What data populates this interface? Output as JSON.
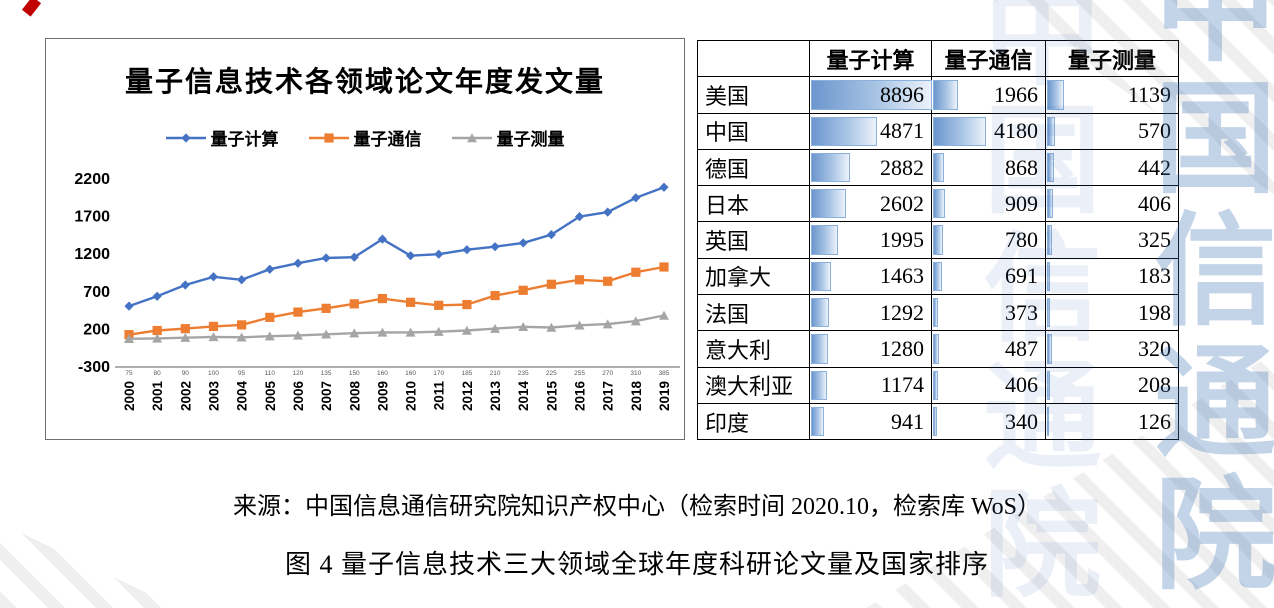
{
  "decor": {
    "watermark_text": "中国信通院",
    "watermark_color": "#3970B7",
    "stripe_color": "#828282",
    "corner_mark_color": "#C00000"
  },
  "chart_data": [
    {
      "type": "line",
      "title": "量子信息技术各领域论文年度发文量",
      "x": [
        "2000",
        "2001",
        "2002",
        "2003",
        "2004",
        "2005",
        "2006",
        "2007",
        "2008",
        "2009",
        "2010",
        "2011",
        "2012",
        "2013",
        "2014",
        "2015",
        "2016",
        "2017",
        "2018",
        "2019"
      ],
      "series": [
        {
          "name": "量子计算",
          "color": "#4472C4",
          "marker": "diamond",
          "values": [
            510,
            640,
            790,
            900,
            860,
            1000,
            1080,
            1150,
            1160,
            1400,
            1180,
            1200,
            1260,
            1300,
            1350,
            1460,
            1700,
            1760,
            1950,
            2090
          ]
        },
        {
          "name": "量子通信",
          "color": "#ED7D31",
          "marker": "square",
          "values": [
            130,
            185,
            210,
            240,
            260,
            360,
            430,
            480,
            540,
            610,
            560,
            520,
            530,
            650,
            720,
            800,
            860,
            840,
            960,
            1030
          ]
        },
        {
          "name": "量子测量",
          "color": "#A5A5A5",
          "marker": "triangle",
          "show_labels": true,
          "values": [
            75,
            80,
            90,
            100,
            95,
            110,
            120,
            135,
            150,
            160,
            160,
            170,
            185,
            210,
            235,
            225,
            255,
            270,
            310,
            385
          ]
        }
      ],
      "ylim": [
        -300,
        2200
      ],
      "yticks": [
        2200,
        1700,
        1200,
        700,
        200,
        -300
      ],
      "grid": false,
      "legend_position": "top"
    },
    {
      "type": "table",
      "headers": [
        "",
        "量子计算",
        "量子通信",
        "量子测量"
      ],
      "bar_max": 8896,
      "rows": [
        {
          "country": "美国",
          "values": [
            8896,
            1966,
            1139
          ]
        },
        {
          "country": "中国",
          "values": [
            4871,
            4180,
            570
          ]
        },
        {
          "country": "德国",
          "values": [
            2882,
            868,
            442
          ]
        },
        {
          "country": "日本",
          "values": [
            2602,
            909,
            406
          ]
        },
        {
          "country": "英国",
          "values": [
            1995,
            780,
            325
          ]
        },
        {
          "country": "加拿大",
          "values": [
            1463,
            691,
            183
          ]
        },
        {
          "country": "法国",
          "values": [
            1292,
            373,
            198
          ]
        },
        {
          "country": "意大利",
          "values": [
            1280,
            487,
            320
          ]
        },
        {
          "country": "澳大利亚",
          "values": [
            1174,
            406,
            208
          ]
        },
        {
          "country": "印度",
          "values": [
            941,
            340,
            126
          ]
        }
      ]
    }
  ],
  "source": "来源：中国信息通信研究院知识产权中心（检索时间 2020.10，检索库 WoS）",
  "caption": "图 4 量子信息技术三大领域全球年度科研论文量及国家排序"
}
